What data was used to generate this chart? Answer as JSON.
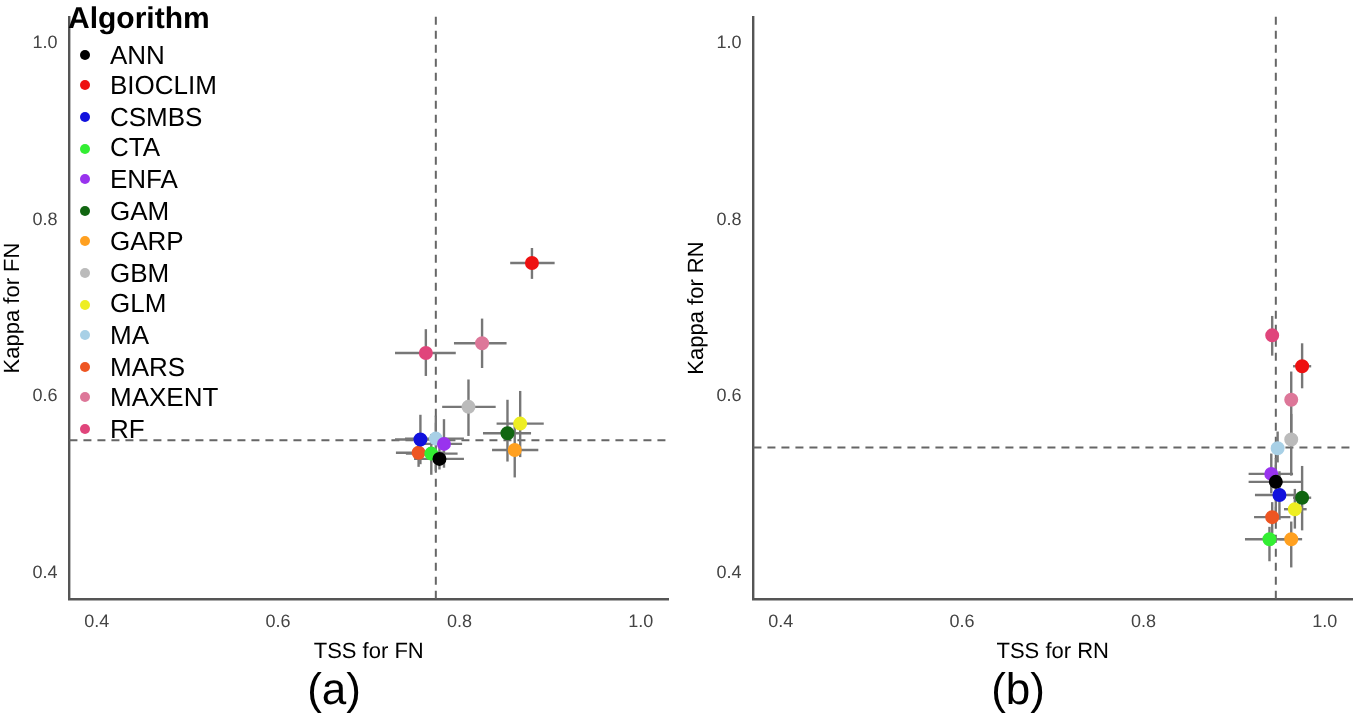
{
  "chart_data": [
    {
      "type": "scatter",
      "title": "(a)",
      "xlabel": "TSS for FN",
      "ylabel": "Kappa for FN",
      "legend_title": "Algorithm",
      "legend": "top left",
      "marker": "circle",
      "grid": false,
      "xlim": [
        0.37,
        1.03
      ],
      "ylim": [
        0.37,
        1.03
      ],
      "xticks": [
        0.4,
        0.6,
        0.8,
        {
          "value": 1,
          "label": "1.0"
        }
      ],
      "yticks": [
        0.4,
        0.6,
        0.8,
        {
          "value": 1,
          "label": "1.0"
        }
      ],
      "ref_lines": [
        {
          "axis": "x",
          "value": 0.774,
          "line_style": "dashed",
          "color": "#666666"
        },
        {
          "axis": "y",
          "value": 0.55,
          "line_style": "dashed",
          "color": "#666666"
        }
      ],
      "series": [
        {
          "name": "ANN",
          "color": "#000000",
          "x": [
            0.778
          ],
          "values": [
            0.529
          ],
          "xerrors": [
            [
              0.75,
              0.805
            ]
          ],
          "errors": [
            [
              0.517,
              0.552
            ]
          ]
        },
        {
          "name": "BIOCLIM",
          "color": "#ee1111",
          "x": [
            0.88
          ],
          "values": [
            0.751
          ],
          "xerrors": [
            [
              0.856,
              0.905
            ]
          ],
          "errors": [
            [
              0.733,
              0.768
            ]
          ]
        },
        {
          "name": "CSMBS",
          "color": "#1111dd",
          "x": [
            0.757
          ],
          "values": [
            0.551
          ],
          "xerrors": [
            [
              0.729,
              0.795
            ]
          ],
          "errors": [
            [
              0.523,
              0.579
            ]
          ]
        },
        {
          "name": "CTA",
          "color": "#33ee33",
          "x": [
            0.769
          ],
          "values": [
            0.535
          ],
          "xerrors": [
            [
              0.741,
              0.798
            ]
          ],
          "errors": [
            [
              0.511,
              0.557
            ]
          ]
        },
        {
          "name": "ENFA",
          "color": "#9933ee",
          "x": [
            0.783
          ],
          "values": [
            0.546
          ],
          "xerrors": [
            [
              0.757,
              0.803
            ]
          ],
          "errors": [
            [
              0.519,
              0.574
            ]
          ]
        },
        {
          "name": "GAM",
          "color": "#116611",
          "x": [
            0.853
          ],
          "values": [
            0.558
          ],
          "xerrors": [
            [
              0.826,
              0.879
            ]
          ],
          "errors": [
            [
              0.526,
              0.596
            ]
          ]
        },
        {
          "name": "GARP",
          "color": "#ffa020",
          "x": [
            0.861
          ],
          "values": [
            0.539
          ],
          "xerrors": [
            [
              0.836,
              0.887
            ]
          ],
          "errors": [
            [
              0.508,
              0.569
            ]
          ]
        },
        {
          "name": "GBM",
          "color": "#bbbbbb",
          "x": [
            0.81
          ],
          "values": [
            0.588
          ],
          "xerrors": [
            [
              0.781,
              0.84
            ]
          ],
          "errors": [
            [
              0.555,
              0.619
            ]
          ]
        },
        {
          "name": "GLM",
          "color": "#eeee22",
          "x": [
            0.867
          ],
          "values": [
            0.569
          ],
          "xerrors": [
            [
              0.841,
              0.893
            ]
          ],
          "errors": [
            [
              0.531,
              0.606
            ]
          ]
        },
        {
          "name": "MA",
          "color": "#a8d0e6",
          "x": [
            0.774
          ],
          "values": [
            0.552
          ],
          "xerrors": [
            [
              0.74,
              0.805
            ]
          ],
          "errors": [
            [
              0.515,
              0.578
            ]
          ]
        },
        {
          "name": "MARS",
          "color": "#ee5522",
          "x": [
            0.755
          ],
          "values": [
            0.536
          ],
          "xerrors": [
            [
              0.73,
              0.782
            ]
          ],
          "errors": [
            [
              0.52,
              0.558
            ]
          ]
        },
        {
          "name": "MAXENT",
          "color": "#dd7799",
          "x": [
            0.825
          ],
          "values": [
            0.66
          ],
          "xerrors": [
            [
              0.794,
              0.852
            ]
          ],
          "errors": [
            [
              0.632,
              0.688
            ]
          ]
        },
        {
          "name": "RF",
          "color": "#e0457b",
          "x": [
            0.763
          ],
          "values": [
            0.649
          ],
          "xerrors": [
            [
              0.729,
              0.796
            ]
          ],
          "errors": [
            [
              0.623,
              0.676
            ]
          ]
        }
      ]
    },
    {
      "type": "scatter",
      "title": "(b)",
      "xlabel": "TSS for RN",
      "ylabel": "Kappa for RN",
      "marker": "circle",
      "grid": false,
      "xlim": [
        0.37,
        1.03
      ],
      "ylim": [
        0.37,
        1.03
      ],
      "xticks": [
        0.4,
        0.6,
        0.8,
        {
          "value": 1,
          "label": "1.0"
        }
      ],
      "yticks": [
        0.4,
        0.6,
        0.8,
        {
          "value": 1,
          "label": "1.0"
        }
      ],
      "ref_lines": [
        {
          "axis": "x",
          "value": 0.946,
          "line_style": "dashed",
          "color": "#666666"
        },
        {
          "axis": "y",
          "value": 0.542,
          "line_style": "dashed",
          "color": "#666666"
        }
      ],
      "series": [
        {
          "color": "#000000",
          "x": [
            0.946
          ],
          "values": [
            0.503
          ],
          "xerrors": [
            [
              0.916,
              0.976
            ]
          ],
          "errors": [
            [
              0.47,
              0.53
            ]
          ]
        },
        {
          "color": "#ee1111",
          "x": [
            0.975
          ],
          "values": [
            0.634
          ],
          "xerrors": [
            [
              0.965,
              0.985
            ]
          ],
          "errors": [
            [
              0.609,
              0.66
            ]
          ]
        },
        {
          "color": "#1111dd",
          "x": [
            0.95
          ],
          "values": [
            0.488
          ],
          "xerrors": [
            [
              0.923,
              0.976
            ]
          ],
          "errors": [
            [
              0.46,
              0.515
            ]
          ]
        },
        {
          "color": "#33ee33",
          "x": [
            0.939
          ],
          "values": [
            0.438
          ],
          "xerrors": [
            [
              0.912,
              0.966
            ]
          ],
          "errors": [
            [
              0.413,
              0.452
            ]
          ]
        },
        {
          "color": "#9933ee",
          "x": [
            0.941
          ],
          "values": [
            0.512
          ],
          "xerrors": [
            [
              0.916,
              0.965
            ]
          ],
          "errors": [
            [
              0.49,
              0.535
            ]
          ]
        },
        {
          "color": "#116611",
          "x": [
            0.975
          ],
          "values": [
            0.485
          ],
          "xerrors": [
            [
              0.965,
              0.985
            ]
          ],
          "errors": [
            [
              0.448,
              0.521
            ]
          ]
        },
        {
          "color": "#ffa020",
          "x": [
            0.963
          ],
          "values": [
            0.438
          ],
          "xerrors": [
            [
              0.95,
              0.975
            ]
          ],
          "errors": [
            [
              0.406,
              0.458
            ]
          ]
        },
        {
          "color": "#bbbbbb",
          "x": [
            0.963
          ],
          "values": [
            0.551
          ],
          "xerrors": [
            null
          ],
          "errors": [
            [
              0.51,
              0.58
            ]
          ]
        },
        {
          "color": "#eeee22",
          "x": [
            0.967
          ],
          "values": [
            0.472
          ],
          "xerrors": [
            [
              0.955,
              0.98
            ]
          ],
          "errors": [
            [
              0.45,
              0.495
            ]
          ]
        },
        {
          "color": "#a8d0e6",
          "x": [
            0.948
          ],
          "values": [
            0.541
          ],
          "xerrors": [
            null
          ],
          "errors": [
            [
              0.525,
              0.56
            ]
          ]
        },
        {
          "color": "#ee5522",
          "x": [
            0.942
          ],
          "values": [
            0.463
          ],
          "xerrors": [
            [
              0.922,
              0.962
            ]
          ],
          "errors": [
            [
              0.445,
              0.48
            ]
          ]
        },
        {
          "color": "#dd7799",
          "x": [
            0.963
          ],
          "values": [
            0.596
          ],
          "xerrors": [
            null
          ],
          "errors": [
            [
              0.552,
              0.628
            ]
          ]
        },
        {
          "color": "#e0457b",
          "x": [
            0.942
          ],
          "values": [
            0.669
          ],
          "xerrors": [
            null
          ],
          "errors": [
            [
              0.646,
              0.691
            ]
          ]
        }
      ]
    }
  ]
}
